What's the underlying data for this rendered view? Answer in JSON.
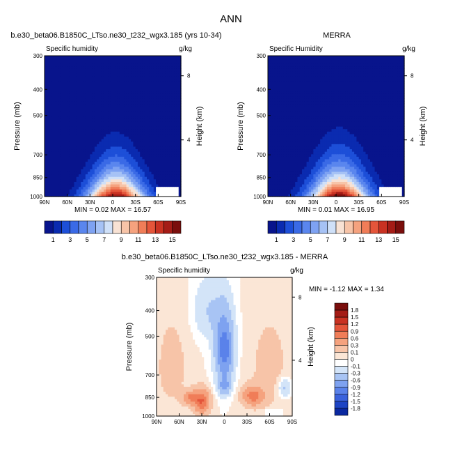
{
  "figure": {
    "title": "ANN"
  },
  "panels": [
    {
      "id": "model",
      "title": "b.e30_beta06.B1850C_LTso.ne30_t232_wgx3.185 (yrs 10-34)",
      "left_label": "Specific humidity",
      "right_label": "g/kg",
      "ylabel": "Pressure (mb)",
      "y2label": "Height (km)",
      "y_ticks": [
        "300",
        "400",
        "500",
        "700",
        "850",
        "1000"
      ],
      "y2_ticks": [
        "8",
        "4"
      ],
      "x_ticks": [
        "90N",
        "60N",
        "30N",
        "0",
        "30S",
        "60S",
        "90S"
      ],
      "stats": "MIN =  0.02  MAX =  16.57"
    },
    {
      "id": "obs",
      "title": "MERRA",
      "left_label": "Specific Humidity",
      "right_label": "g/kg",
      "ylabel": "Pressure (mb)",
      "y2label": "Height (km)",
      "y_ticks": [
        "300",
        "400",
        "500",
        "700",
        "850",
        "1000"
      ],
      "y2_ticks": [
        "8",
        "4"
      ],
      "x_ticks": [
        "90N",
        "60N",
        "30N",
        "0",
        "30S",
        "60S",
        "90S"
      ],
      "stats": "MIN =  0.01  MAX =  16.95"
    },
    {
      "id": "diff",
      "title": "b.e30_beta06.B1850C_LTso.ne30_t232_wgx3.185 - MERRA",
      "left_label": "Specific humidity",
      "right_label": "g/kg",
      "ylabel": "Pressure (mb)",
      "y2label": "Height (km)",
      "y_ticks": [
        "300",
        "400",
        "500",
        "700",
        "850",
        "1000"
      ],
      "y2_ticks": [
        "8",
        "4"
      ],
      "x_ticks": [
        "90N",
        "60N",
        "30N",
        "0",
        "30S",
        "60S",
        "90S"
      ],
      "stats": "MIN = -1.12  MAX =   1.34"
    }
  ],
  "colorbars": {
    "abs": {
      "labels": [
        "1",
        "3",
        "5",
        "7",
        "9",
        "11",
        "13",
        "15"
      ],
      "colors": [
        "#08148c",
        "#0a2bb0",
        "#1d4fd8",
        "#3a6ae6",
        "#5a86ee",
        "#7ea2f2",
        "#a6c2f5",
        "#cfe0f8",
        "#f8e2d4",
        "#f7c4a8",
        "#f5a27e",
        "#f07d58",
        "#e4553a",
        "#c93222",
        "#a41c16",
        "#7a0e0c"
      ]
    },
    "diff": {
      "labels": [
        "1.8",
        "1.5",
        "1.2",
        "0.9",
        "0.6",
        "0.3",
        "0.1",
        "0",
        "-0.1",
        "-0.3",
        "-0.6",
        "-0.9",
        "-1.2",
        "-1.5",
        "-1.8"
      ],
      "colors": [
        "#7a0e0c",
        "#a41c16",
        "#c93222",
        "#e4553a",
        "#f07d58",
        "#f5a27e",
        "#f7c4a8",
        "#fbe6d6",
        "#ffffff",
        "#d3e4f8",
        "#a8c4f4",
        "#7ea2f0",
        "#5a82ea",
        "#3a62dc",
        "#1d44c4",
        "#0a28a0"
      ]
    }
  },
  "chart_data": [
    {
      "type": "heatmap",
      "title": "b.e30_beta06.B1850C_LTso.ne30_t232_wgx3.185 (yrs 10-34)",
      "field": "Specific humidity",
      "units": "g/kg",
      "ylabel": "Pressure (mb)",
      "y2label": "Height (km)",
      "xlim": [
        90,
        -90
      ],
      "ylim": [
        1000,
        300
      ],
      "contour_levels": [
        1,
        2,
        3,
        4,
        5,
        6,
        7,
        8,
        9,
        10,
        11,
        12,
        13,
        14,
        15
      ],
      "min": 0.02,
      "max": 16.57,
      "peak_lat": 0,
      "peak_p": 1000
    },
    {
      "type": "heatmap",
      "title": "MERRA",
      "field": "Specific Humidity",
      "units": "g/kg",
      "ylabel": "Pressure (mb)",
      "y2label": "Height (km)",
      "xlim": [
        90,
        -90
      ],
      "ylim": [
        1000,
        300
      ],
      "contour_levels": [
        1,
        2,
        3,
        4,
        5,
        6,
        7,
        8,
        9,
        10,
        11,
        12,
        13,
        14,
        15
      ],
      "min": 0.01,
      "max": 16.95,
      "peak_lat": 0,
      "peak_p": 1000
    },
    {
      "type": "heatmap",
      "title": "b.e30_beta06.B1850C_LTso.ne30_t232_wgx3.185 - MERRA",
      "field": "Specific humidity",
      "units": "g/kg",
      "ylabel": "Pressure (mb)",
      "y2label": "Height (km)",
      "xlim": [
        90,
        -90
      ],
      "ylim": [
        1000,
        300
      ],
      "contour_levels": [
        -1.8,
        -1.5,
        -1.2,
        -0.9,
        -0.6,
        -0.3,
        -0.1,
        0,
        0.1,
        0.3,
        0.6,
        0.9,
        1.2,
        1.5,
        1.8
      ],
      "min": -1.12,
      "max": 1.34
    }
  ]
}
